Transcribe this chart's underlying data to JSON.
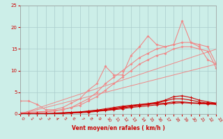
{
  "xlabel": "Vent moyen/en rafales ( km/h )",
  "bg_color": "#cceee8",
  "grid_color": "#aacccc",
  "xmin": 0,
  "xmax": 23,
  "ymin": 0,
  "ymax": 25,
  "yticks": [
    0,
    5,
    10,
    15,
    20,
    25
  ],
  "xticks": [
    0,
    1,
    2,
    3,
    4,
    5,
    6,
    7,
    8,
    9,
    10,
    11,
    12,
    13,
    14,
    15,
    16,
    17,
    18,
    19,
    20,
    21,
    22,
    23
  ],
  "x": [
    0,
    1,
    2,
    3,
    4,
    5,
    6,
    7,
    8,
    9,
    10,
    11,
    12,
    13,
    14,
    15,
    16,
    17,
    18,
    19,
    20,
    21,
    22,
    23
  ],
  "line_jagged1": [
    3.0,
    3.0,
    2.2,
    1.0,
    1.0,
    1.5,
    2.5,
    3.5,
    5.5,
    7.0,
    11.0,
    9.0,
    9.0,
    13.5,
    15.5,
    18.0,
    16.0,
    15.5,
    16.0,
    21.5,
    16.5,
    15.5,
    12.5,
    11.5
  ],
  "line_smooth1": [
    0.3,
    0.4,
    0.5,
    0.6,
    0.8,
    1.0,
    1.5,
    2.5,
    3.5,
    5.0,
    7.0,
    8.5,
    10.0,
    11.5,
    13.0,
    14.0,
    15.0,
    15.5,
    16.0,
    16.5,
    16.5,
    16.0,
    15.5,
    11.5
  ],
  "line_smooth2": [
    0.2,
    0.3,
    0.4,
    0.5,
    0.7,
    1.0,
    1.5,
    2.0,
    3.0,
    4.0,
    5.5,
    7.0,
    8.5,
    10.0,
    11.5,
    12.5,
    13.5,
    14.0,
    15.0,
    15.5,
    15.5,
    15.0,
    14.5,
    10.5
  ],
  "line_straight_upper": [
    0.0,
    0.65,
    1.3,
    1.95,
    2.6,
    3.25,
    3.9,
    4.55,
    5.2,
    5.85,
    6.5,
    7.15,
    7.8,
    8.45,
    9.1,
    9.75,
    10.4,
    11.05,
    11.7,
    12.35,
    13.0,
    13.65,
    14.3,
    14.95
  ],
  "line_straight_lower": [
    0.0,
    0.5,
    1.0,
    1.5,
    2.0,
    2.5,
    3.0,
    3.5,
    4.0,
    4.5,
    5.0,
    5.5,
    6.0,
    6.5,
    7.0,
    7.5,
    8.0,
    8.5,
    9.0,
    9.5,
    10.0,
    10.5,
    11.0,
    11.5
  ],
  "line_dark1": [
    0.1,
    0.1,
    0.1,
    0.1,
    0.2,
    0.3,
    0.4,
    0.5,
    0.7,
    0.9,
    1.2,
    1.5,
    1.8,
    2.0,
    2.2,
    2.4,
    2.7,
    3.2,
    4.0,
    4.2,
    3.8,
    3.2,
    2.8,
    2.5
  ],
  "line_dark2": [
    0.1,
    0.1,
    0.1,
    0.1,
    0.1,
    0.2,
    0.3,
    0.4,
    0.6,
    0.8,
    1.0,
    1.3,
    1.6,
    1.9,
    2.1,
    2.3,
    2.5,
    3.0,
    3.5,
    3.5,
    3.2,
    2.8,
    2.5,
    2.5
  ],
  "line_dark3": [
    0.0,
    0.0,
    0.1,
    0.1,
    0.1,
    0.2,
    0.3,
    0.4,
    0.5,
    0.7,
    0.9,
    1.1,
    1.4,
    1.7,
    2.0,
    2.2,
    2.4,
    2.5,
    2.8,
    2.8,
    2.6,
    2.5,
    2.4,
    2.3
  ],
  "line_dark4": [
    0.0,
    0.0,
    0.0,
    0.0,
    0.1,
    0.1,
    0.2,
    0.3,
    0.4,
    0.6,
    0.8,
    1.0,
    1.2,
    1.5,
    1.7,
    1.9,
    2.1,
    2.3,
    2.5,
    2.6,
    2.5,
    2.4,
    2.3,
    2.2
  ],
  "color_light": "#f08888",
  "color_dark": "#cc0000",
  "lw_light": 0.8,
  "lw_dark": 0.8,
  "ms_light": 2.0,
  "ms_dark": 2.0
}
